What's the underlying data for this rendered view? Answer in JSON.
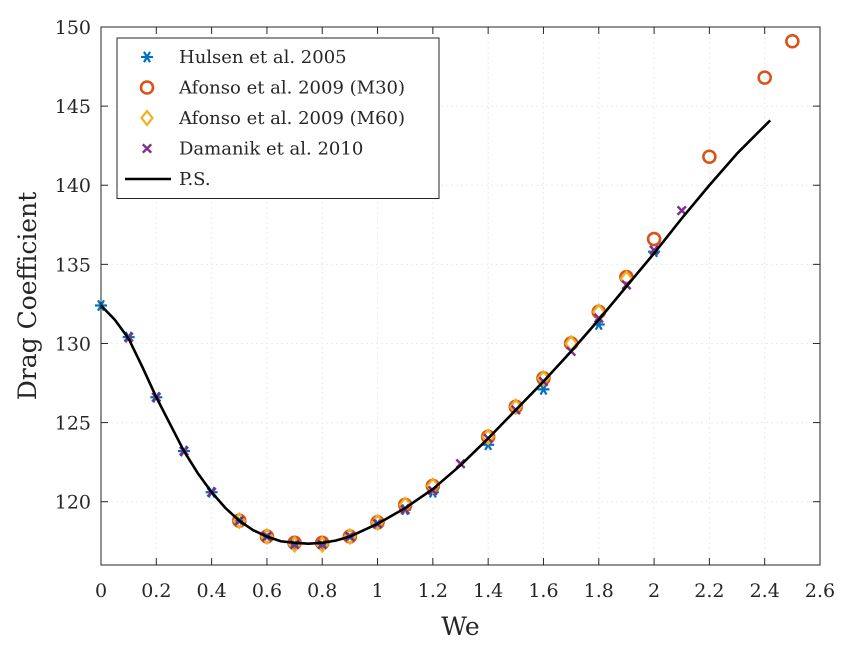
{
  "chart_data": {
    "type": "scatter",
    "title": "",
    "xlabel": "We",
    "ylabel": "Drag Coefficient",
    "xlim": [
      0,
      2.6
    ],
    "ylim": [
      116,
      150
    ],
    "xticks": [
      "0",
      "0.2",
      "0.4",
      "0.6",
      "0.8",
      "1",
      "1.2",
      "1.4",
      "1.6",
      "1.8",
      "2",
      "2.2",
      "2.4",
      "2.6"
    ],
    "yticks": [
      "120",
      "125",
      "130",
      "135",
      "140",
      "145",
      "150"
    ],
    "grid": true,
    "legend_position": "top-left",
    "series": [
      {
        "name": "Hulsen et al. 2005",
        "marker": "asterisk",
        "color": "#0072BD",
        "x": [
          0,
          0.1,
          0.2,
          0.3,
          0.4,
          0.5,
          0.6,
          0.7,
          0.8,
          0.9,
          1.0,
          1.1,
          1.2,
          1.4,
          1.6,
          1.8,
          2.0
        ],
        "y": [
          132.4,
          130.4,
          126.6,
          123.2,
          120.6,
          118.8,
          117.8,
          117.3,
          117.3,
          117.8,
          118.6,
          119.5,
          120.6,
          123.6,
          127.1,
          131.2,
          135.8
        ]
      },
      {
        "name": "Afonso et al. 2009 (M30)",
        "marker": "circle",
        "color": "#D95319",
        "x": [
          0.5,
          0.6,
          0.7,
          0.8,
          0.9,
          1.0,
          1.1,
          1.2,
          1.4,
          1.5,
          1.6,
          1.7,
          1.8,
          1.9,
          2.0,
          2.2,
          2.4,
          2.5
        ],
        "y": [
          118.8,
          117.8,
          117.4,
          117.4,
          117.8,
          118.7,
          119.8,
          121.0,
          124.1,
          126.0,
          127.8,
          130.0,
          132.0,
          134.2,
          136.6,
          141.8,
          146.8,
          149.1
        ]
      },
      {
        "name": "Afonso et al. 2009 (M60)",
        "marker": "diamond",
        "color": "#EDB120",
        "x": [
          0.5,
          0.6,
          0.7,
          0.8,
          0.9,
          1.0,
          1.1,
          1.2,
          1.4,
          1.5,
          1.6,
          1.7,
          1.8,
          1.9
        ],
        "y": [
          118.8,
          117.8,
          117.3,
          117.3,
          117.8,
          118.7,
          119.8,
          121.0,
          124.1,
          126.0,
          127.8,
          130.0,
          132.0,
          134.1
        ]
      },
      {
        "name": "Damanik et al. 2010",
        "marker": "x",
        "color": "#7E2F8E",
        "x": [
          0.1,
          0.2,
          0.3,
          0.4,
          0.5,
          0.6,
          0.7,
          0.8,
          0.9,
          1.0,
          1.1,
          1.2,
          1.3,
          1.4,
          1.5,
          1.6,
          1.7,
          1.8,
          1.9,
          2.0,
          2.1
        ],
        "y": [
          130.4,
          126.6,
          123.2,
          120.6,
          118.8,
          117.8,
          117.3,
          117.3,
          117.8,
          118.6,
          119.5,
          120.7,
          122.4,
          124.0,
          125.8,
          127.6,
          129.5,
          131.6,
          133.7,
          135.9,
          138.4
        ]
      },
      {
        "name": "P.S.",
        "marker": "line",
        "color": "#000000",
        "x": [
          0,
          0.05,
          0.1,
          0.15,
          0.2,
          0.25,
          0.3,
          0.35,
          0.4,
          0.45,
          0.5,
          0.55,
          0.6,
          0.65,
          0.7,
          0.75,
          0.8,
          0.85,
          0.9,
          0.95,
          1.0,
          1.1,
          1.2,
          1.3,
          1.4,
          1.5,
          1.6,
          1.7,
          1.8,
          1.9,
          2.0,
          2.1,
          2.2,
          2.3,
          2.42
        ],
        "y": [
          132.4,
          131.5,
          130.3,
          128.5,
          126.6,
          124.9,
          123.2,
          121.8,
          120.6,
          119.6,
          118.8,
          118.2,
          117.8,
          117.5,
          117.4,
          117.35,
          117.4,
          117.55,
          117.8,
          118.2,
          118.6,
          119.6,
          120.8,
          122.3,
          124.0,
          125.8,
          127.6,
          129.5,
          131.5,
          133.6,
          135.7,
          137.9,
          140.0,
          142.0,
          144.1
        ]
      }
    ]
  }
}
